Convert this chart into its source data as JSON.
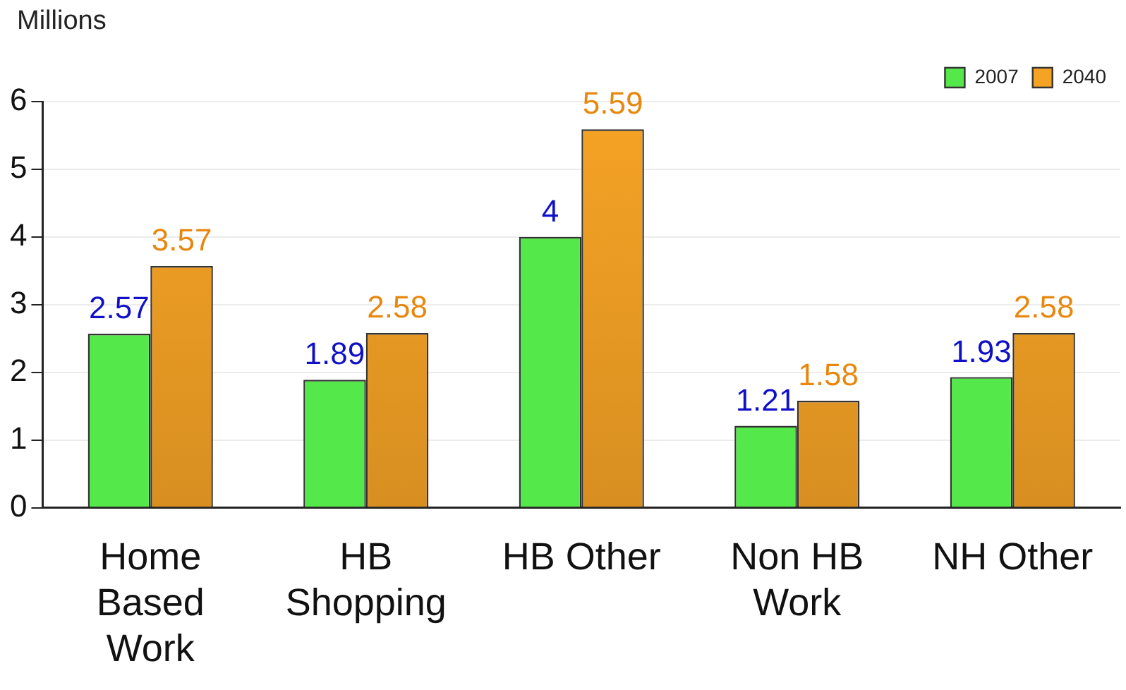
{
  "chart_data": {
    "type": "bar",
    "ylabel": "Millions",
    "categories": [
      "Home Based Work",
      "HB Shopping",
      "HB Other",
      "Non HB Work",
      "NH Other"
    ],
    "series": [
      {
        "name": "2007",
        "color": "#55e84a",
        "values": [
          2.57,
          1.89,
          4,
          1.21,
          1.93
        ]
      },
      {
        "name": "2040",
        "color": "#f5a325",
        "values": [
          3.57,
          2.58,
          5.59,
          1.58,
          2.58
        ]
      }
    ],
    "ylim": [
      0,
      6
    ],
    "yticks": [
      0,
      1,
      2,
      3,
      4,
      5,
      6
    ],
    "grid": "y",
    "legend": "top right",
    "data_labels": true
  }
}
